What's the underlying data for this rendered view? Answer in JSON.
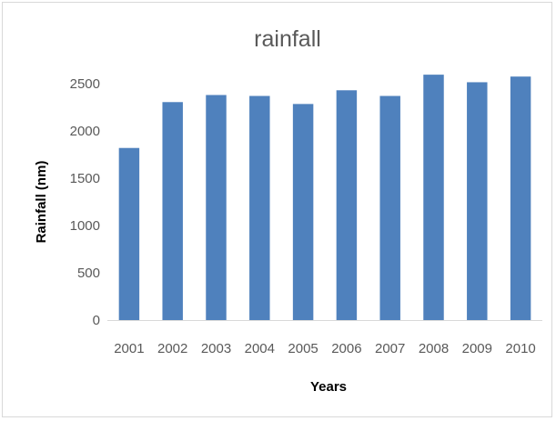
{
  "chart_data": {
    "type": "bar",
    "title": "rainfall",
    "xlabel": "Years",
    "ylabel": "Rainfall (nm)",
    "categories": [
      "2001",
      "2002",
      "2003",
      "2004",
      "2005",
      "2006",
      "2007",
      "2008",
      "2009",
      "2010"
    ],
    "values": [
      1820,
      2305,
      2380,
      2370,
      2285,
      2430,
      2370,
      2595,
      2515,
      2575
    ],
    "ylim": [
      0,
      2500
    ],
    "yticks": [
      "0",
      "500",
      "1000",
      "1500",
      "2000",
      "2500"
    ],
    "grid": false,
    "legend": "none",
    "bar_color": "#4f81bd",
    "axis_color": "#d9d9d9"
  }
}
